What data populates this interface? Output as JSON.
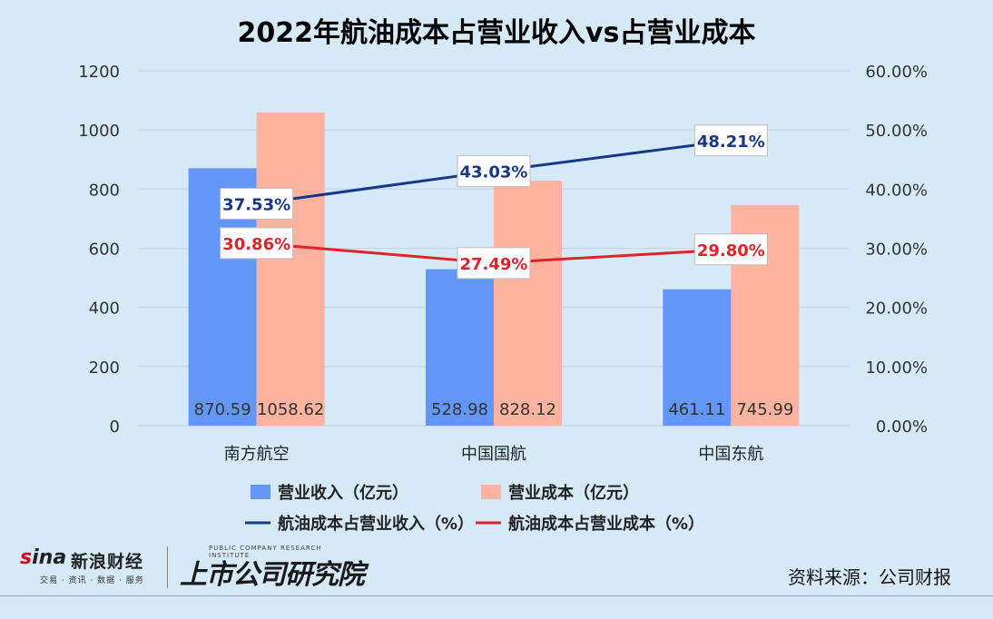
{
  "chart_data": {
    "type": "bar",
    "title": "2022年航油成本占营业收入vs占营业成本",
    "categories": [
      "南方航空",
      "中国国航",
      "中国东航"
    ],
    "series": [
      {
        "name": "营业收入（亿元）",
        "kind": "bar",
        "axis": "left",
        "color": "#6296f7",
        "values": [
          870.59,
          528.98,
          461.11
        ],
        "labels": [
          "870.59",
          "528.98",
          "461.11"
        ]
      },
      {
        "name": "营业成本（亿元）",
        "kind": "bar",
        "axis": "left",
        "color": "#fdb3a0",
        "values": [
          1058.62,
          828.12,
          745.99
        ],
        "labels": [
          "1058.62",
          "828.12",
          "745.99"
        ]
      },
      {
        "name": "航油成本占营业收入（%）",
        "kind": "line",
        "axis": "right",
        "color": "#16378a",
        "values": [
          37.53,
          43.03,
          48.21
        ],
        "labels": [
          "37.53%",
          "43.03%",
          "48.21%"
        ]
      },
      {
        "name": "航油成本占营业成本（%）",
        "kind": "line",
        "axis": "right",
        "color": "#e0222a",
        "values": [
          30.86,
          27.49,
          29.8
        ],
        "labels": [
          "30.86%",
          "27.49%",
          "29.80%"
        ]
      }
    ],
    "left_axis": {
      "min": 0,
      "max": 1200,
      "ticks": [
        "0",
        "200",
        "400",
        "600",
        "800",
        "1000",
        "1200"
      ]
    },
    "right_axis": {
      "min": 0,
      "max": 60,
      "ticks": [
        "0.00%",
        "10.00%",
        "20.00%",
        "30.00%",
        "40.00%",
        "50.00%",
        "60.00%"
      ]
    },
    "grid": true,
    "legend_position": "bottom"
  },
  "footer": {
    "sina_brand_s": "s",
    "sina_brand_rest": "ina",
    "sina_cn": "新浪财经",
    "sina_sub": "交易 · 资讯 · 数据 · 服务",
    "institute_en": "PUBLIC COMPANY RESEARCH INSTITUTE",
    "institute_cn": "上市公司研究院",
    "source": "资料来源：公司财报"
  }
}
